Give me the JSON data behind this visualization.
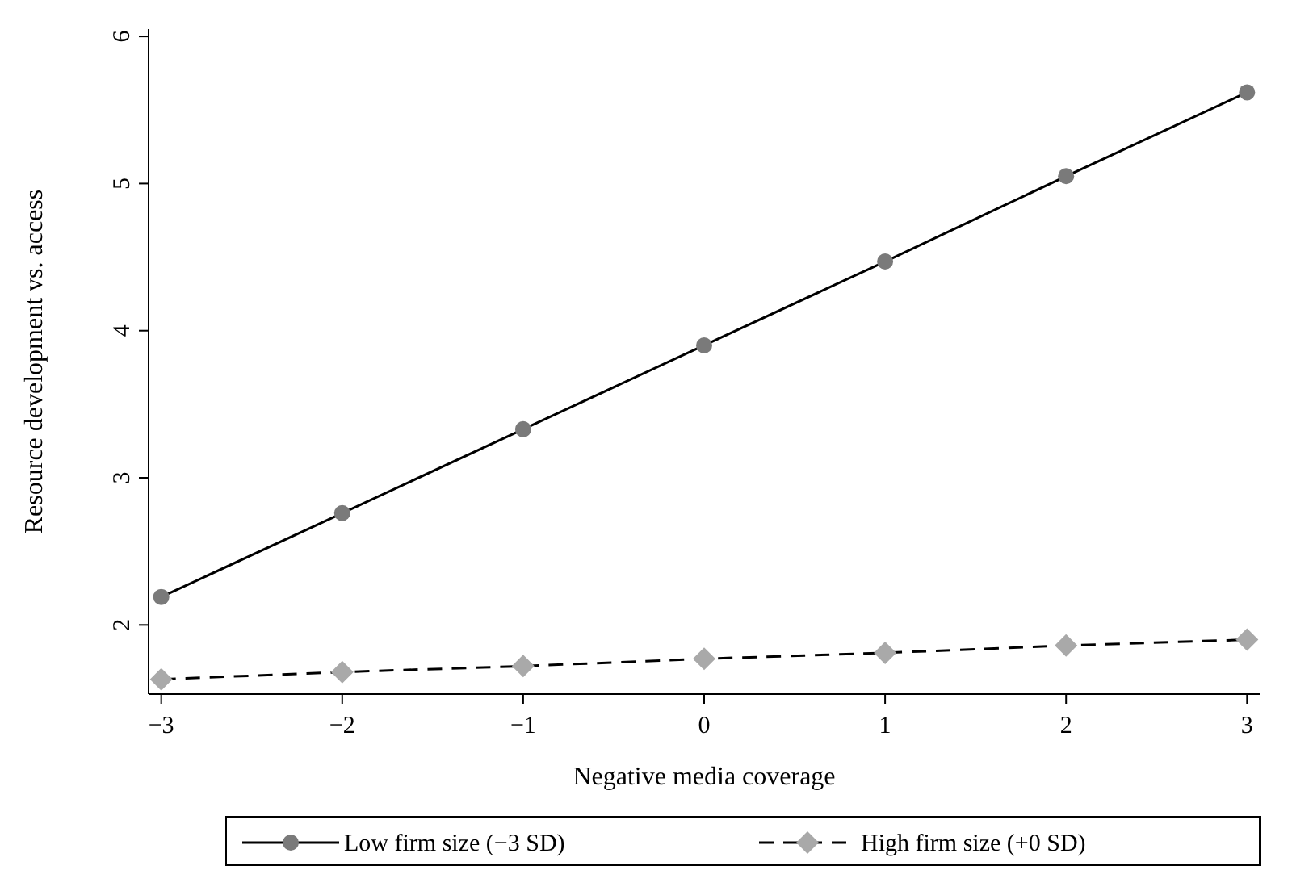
{
  "chart_data": {
    "type": "line",
    "xlabel": "Negative media coverage",
    "ylabel": "Resource development vs. access",
    "x": [
      -3,
      -2,
      -1,
      0,
      1,
      2,
      3
    ],
    "series": [
      {
        "name": "Low firm size (−3 SD)",
        "color": "#7a7a7a",
        "marker": "circle",
        "line_style": "solid",
        "values": [
          2.19,
          2.76,
          3.33,
          3.9,
          4.47,
          5.05,
          5.62
        ]
      },
      {
        "name": "High firm size (+0 SD)",
        "color": "#a9a9a9",
        "marker": "diamond",
        "line_style": "dashed",
        "values": [
          1.63,
          1.68,
          1.72,
          1.77,
          1.81,
          1.86,
          1.9
        ]
      }
    ],
    "xlim": [
      -3.07,
      3.07
    ],
    "ylim": [
      1.53,
      6.05
    ],
    "xticks": [
      -3,
      -2,
      -1,
      0,
      1,
      2,
      3
    ],
    "yticks": [
      2,
      3,
      4,
      5,
      6
    ],
    "grid": false,
    "legend": "bottom"
  }
}
